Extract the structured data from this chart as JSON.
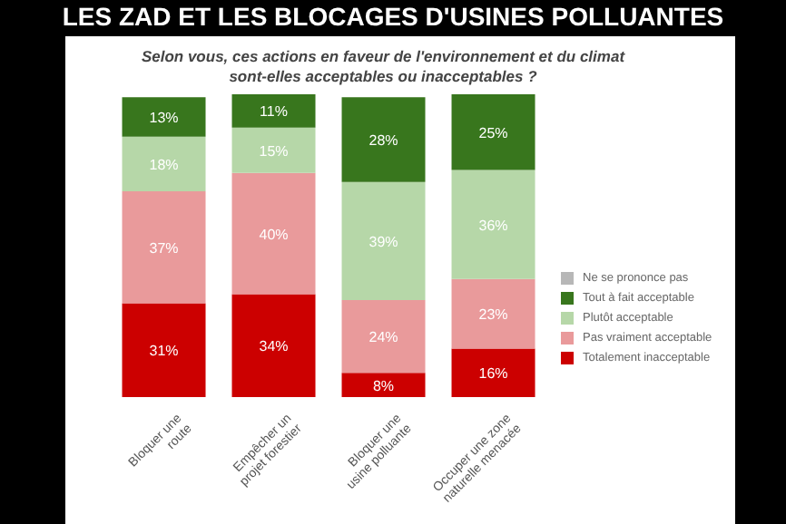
{
  "chart_data": {
    "type": "bar",
    "title": "LES ZAD ET LES BLOCAGES D'USINES POLLUANTES",
    "subtitle": "Selon vous, ces actions en faveur de l'environnement et du climat sont-elles acceptables ou inacceptables ?",
    "categories": [
      "Bloquer une route",
      "Empêcher un projet forestier",
      "Bloquer une usine polluante",
      "Occuper une zone naturelle menacée"
    ],
    "stacked": true,
    "legend": "right",
    "series": [
      {
        "name": "Totalement inacceptable",
        "color": "#cc0000",
        "values": [
          31,
          34,
          8,
          16
        ],
        "value_labels": [
          "31%",
          "34%",
          "8%",
          "16%"
        ]
      },
      {
        "name": "Pas vraiment acceptable",
        "color": "#e99a9b",
        "values": [
          37,
          40,
          24,
          23
        ],
        "value_labels": [
          "37%",
          "40%",
          "24%",
          "23%"
        ]
      },
      {
        "name": "Plutôt acceptable",
        "color": "#b6d7a8",
        "values": [
          18,
          15,
          39,
          36
        ],
        "value_labels": [
          "18%",
          "15%",
          "39%",
          "36%"
        ]
      },
      {
        "name": "Tout à fait acceptable",
        "color": "#38761d",
        "values": [
          13,
          11,
          28,
          25
        ],
        "value_labels": [
          "13%",
          "11%",
          "28%",
          "25%"
        ]
      },
      {
        "name": "Ne se prononce pas",
        "color": "#b7b7b7",
        "values": [
          null,
          null,
          null,
          null
        ]
      }
    ]
  }
}
